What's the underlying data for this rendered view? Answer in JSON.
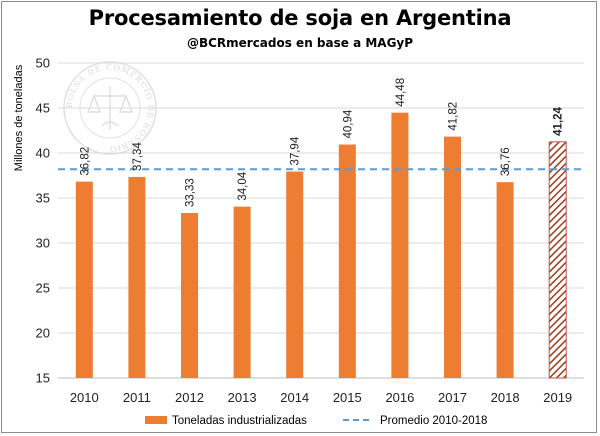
{
  "title": "Procesamiento de soja en Argentina",
  "subtitle": "@BCRmercados  en base a MAGyP",
  "watermark_text": "BOLSA DE COMERCIO DE ROSARIO",
  "colors": {
    "bar": "#ED7D31",
    "bar_estimate_stroke": "#C0504D",
    "hatch": "#9E3A1B",
    "average_line": "#5B9BD5",
    "grid": "#d9d9d9"
  },
  "chart_data": {
    "type": "bar",
    "ylabel": "Millones de toneladas",
    "xlabel": "",
    "ylim": [
      15,
      50
    ],
    "yticks": [
      15,
      20,
      25,
      30,
      35,
      40,
      45,
      50
    ],
    "grid": true,
    "categories": [
      "2010",
      "2011",
      "2012",
      "2013",
      "2014",
      "2015",
      "2016",
      "2017",
      "2018",
      "2019"
    ],
    "values": [
      36.82,
      37.34,
      33.33,
      34.04,
      37.94,
      40.94,
      44.48,
      41.82,
      36.76,
      41.24
    ],
    "value_labels": [
      "36,82",
      "37,34",
      "33,33",
      "34,04",
      "37,94",
      "40,94",
      "44,48",
      "41,82",
      "36,76",
      "41,24"
    ],
    "estimate_flags": [
      false,
      false,
      false,
      false,
      false,
      false,
      false,
      false,
      false,
      true
    ],
    "average": {
      "label": "Promedio 2010-2018",
      "value": 38.2
    },
    "series_name": "Toneladas industrializadas",
    "legend": [
      "Toneladas industrializadas",
      "Promedio 2010-2018"
    ],
    "legend_position": "bottom"
  }
}
